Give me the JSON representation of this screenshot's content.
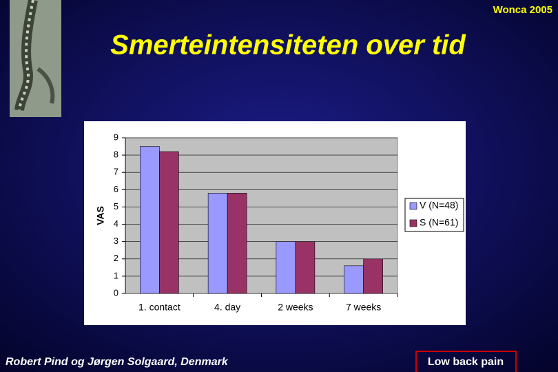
{
  "slide": {
    "tag": "Wonca 2005",
    "author": "Robert  Pind og Jørgen Solgaard, Denmark",
    "topic": "Low back pain"
  },
  "chart_data": {
    "type": "bar",
    "title": "Smerteintensiteten over tid",
    "y_label": "VAS",
    "categories": [
      "1. contact",
      "4. day",
      "2 weeks",
      "7 weeks"
    ],
    "series": [
      {
        "name": "V (N=48)",
        "color": "#9999ff",
        "values": [
          8.5,
          5.8,
          3.0,
          1.6
        ]
      },
      {
        "name": "S (N=61)",
        "color": "#993366",
        "values": [
          8.2,
          5.8,
          3.0,
          2.0
        ]
      }
    ],
    "ylim": [
      0,
      9
    ],
    "yticks": [
      0,
      1,
      2,
      3,
      4,
      5,
      6,
      7,
      8,
      9
    ],
    "grid": true,
    "legend": "right"
  }
}
